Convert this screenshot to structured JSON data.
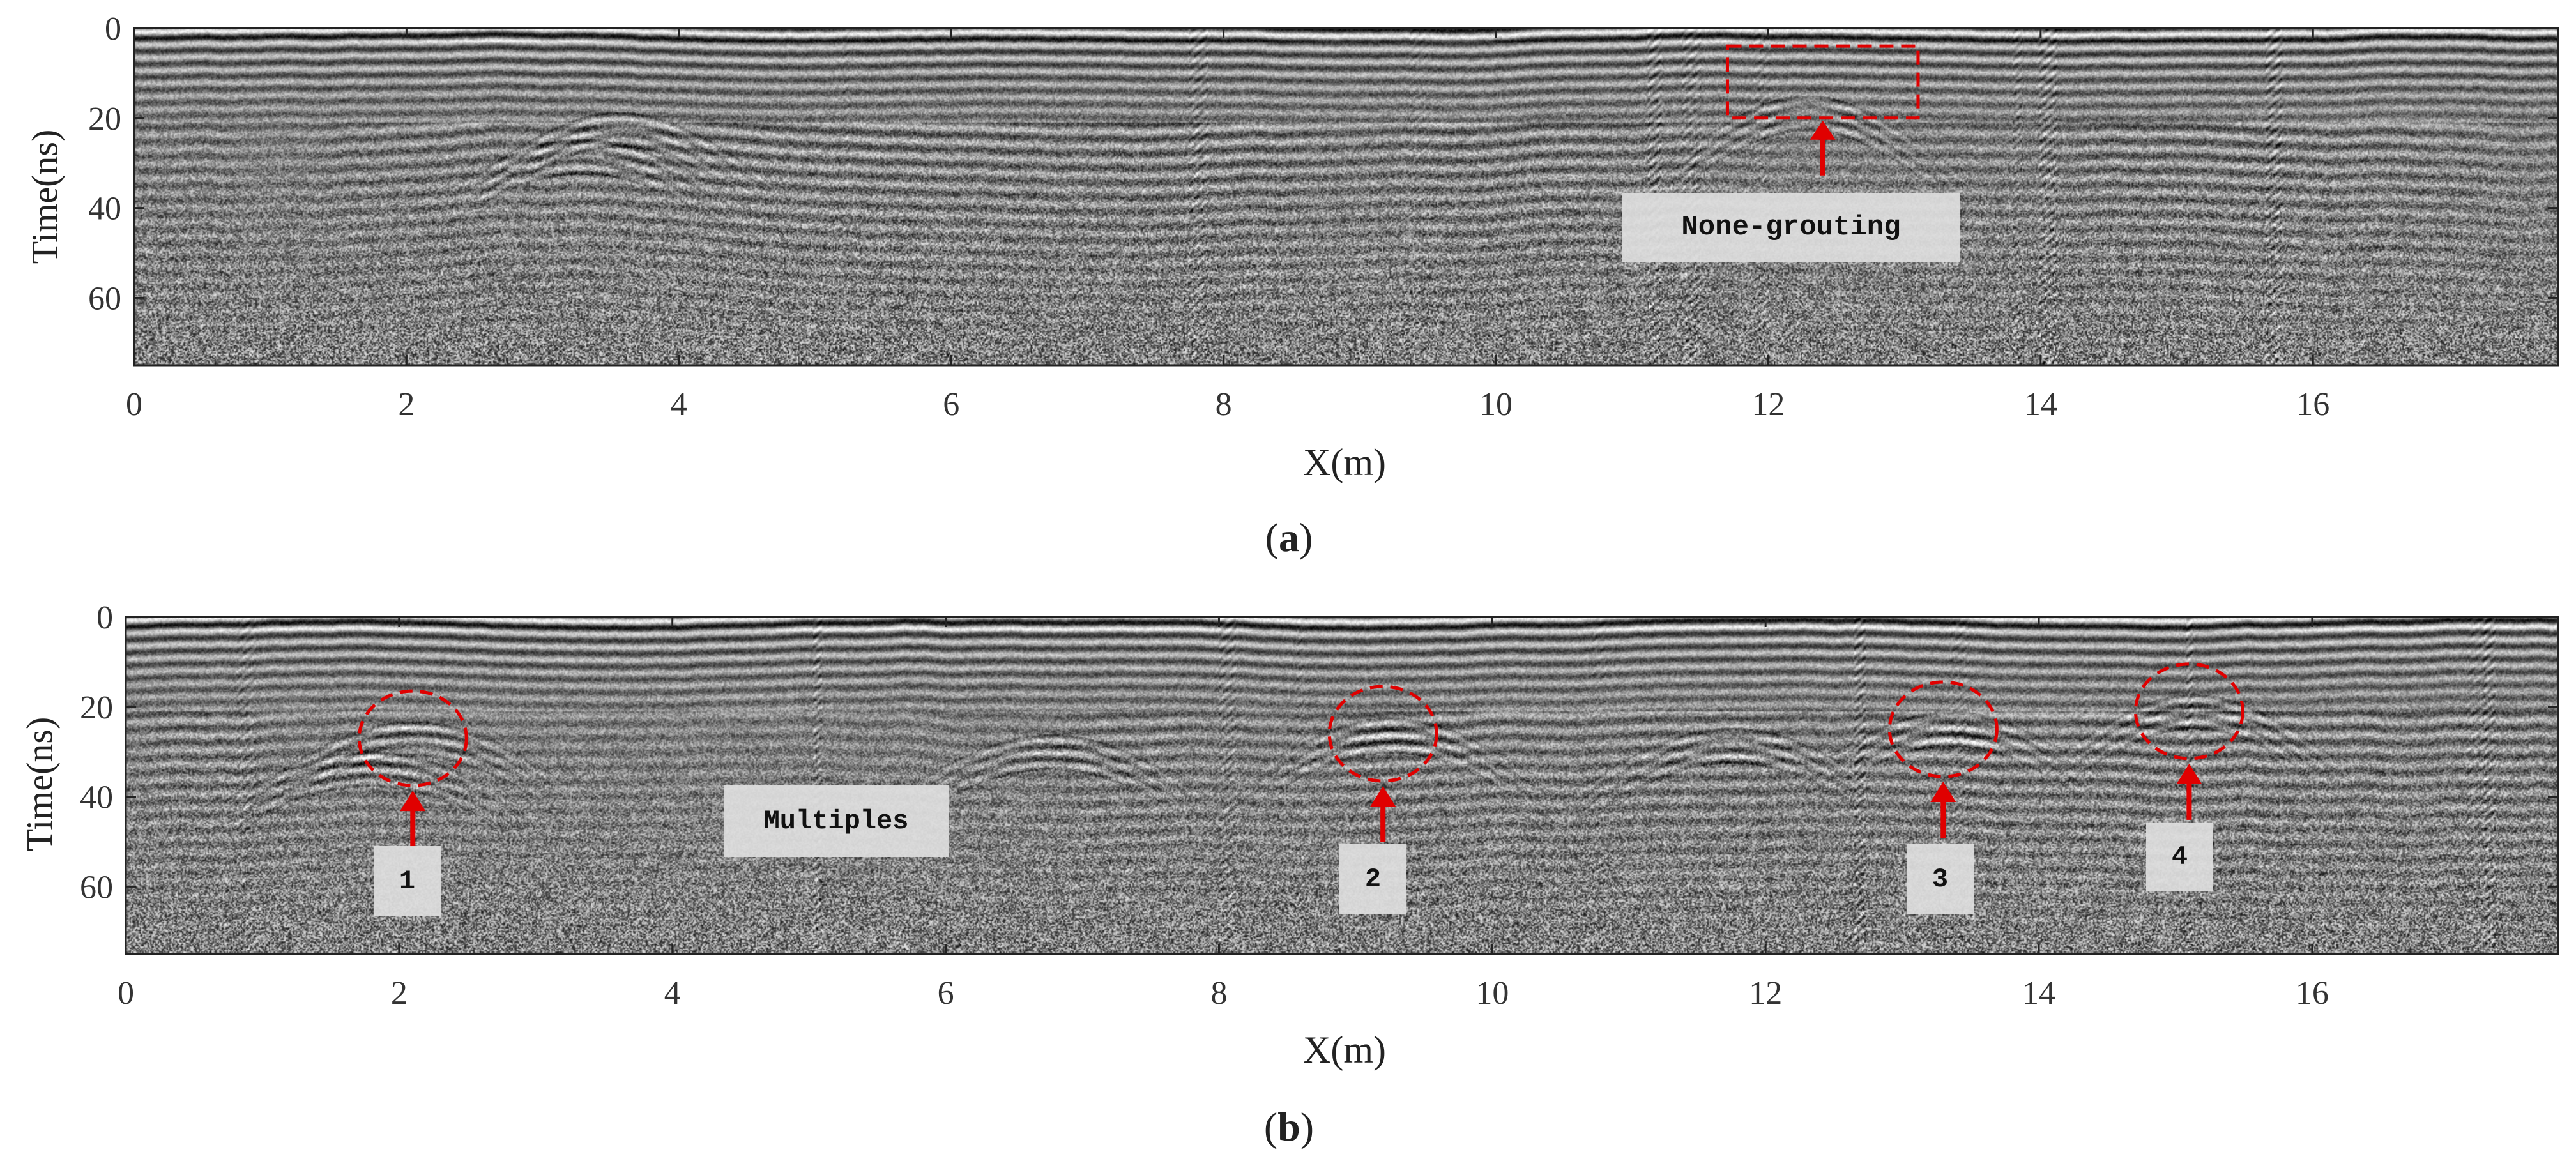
{
  "chart_data": [
    {
      "type": "heatmap",
      "panel_label": "a",
      "xlabel": "X(m)",
      "ylabel": "Time(ns)",
      "x_ticks": [
        0,
        2,
        4,
        6,
        8,
        10,
        12,
        14,
        16
      ],
      "y_ticks": [
        0,
        20,
        40,
        60
      ],
      "xlim": [
        0,
        17.8
      ],
      "ylim": [
        0,
        75
      ],
      "y_axis_inverted": true,
      "colormap": "grayscale",
      "annotations": [
        {
          "label": "None-grouting",
          "shape": "dashed-rectangle",
          "x_range": [
            11.7,
            13.1
          ],
          "t_range": [
            4,
            20
          ],
          "color": "#e00000"
        }
      ]
    },
    {
      "type": "heatmap",
      "panel_label": "b",
      "xlabel": "X(m)",
      "ylabel": "Time(ns)",
      "x_ticks": [
        0,
        2,
        4,
        6,
        8,
        10,
        12,
        14,
        16
      ],
      "y_ticks": [
        0,
        20,
        40,
        60
      ],
      "xlim": [
        0,
        17.8
      ],
      "ylim": [
        0,
        75
      ],
      "y_axis_inverted": true,
      "colormap": "grayscale",
      "annotations": [
        {
          "label": "1",
          "shape": "dashed-ellipse",
          "x": 2.1,
          "t": 27,
          "color": "#e00000"
        },
        {
          "label": "2",
          "shape": "dashed-ellipse",
          "x": 9.2,
          "t": 26,
          "color": "#e00000"
        },
        {
          "label": "3",
          "shape": "dashed-ellipse",
          "x": 13.3,
          "t": 25,
          "color": "#e00000"
        },
        {
          "label": "4",
          "shape": "dashed-ellipse",
          "x": 15.1,
          "t": 21,
          "color": "#e00000"
        },
        {
          "label": "Multiples",
          "shape": "text-box",
          "x": 5.1,
          "t": 47
        }
      ]
    }
  ],
  "colors": {
    "annotation_red": "#e00000",
    "box_fill": "#dedede"
  }
}
